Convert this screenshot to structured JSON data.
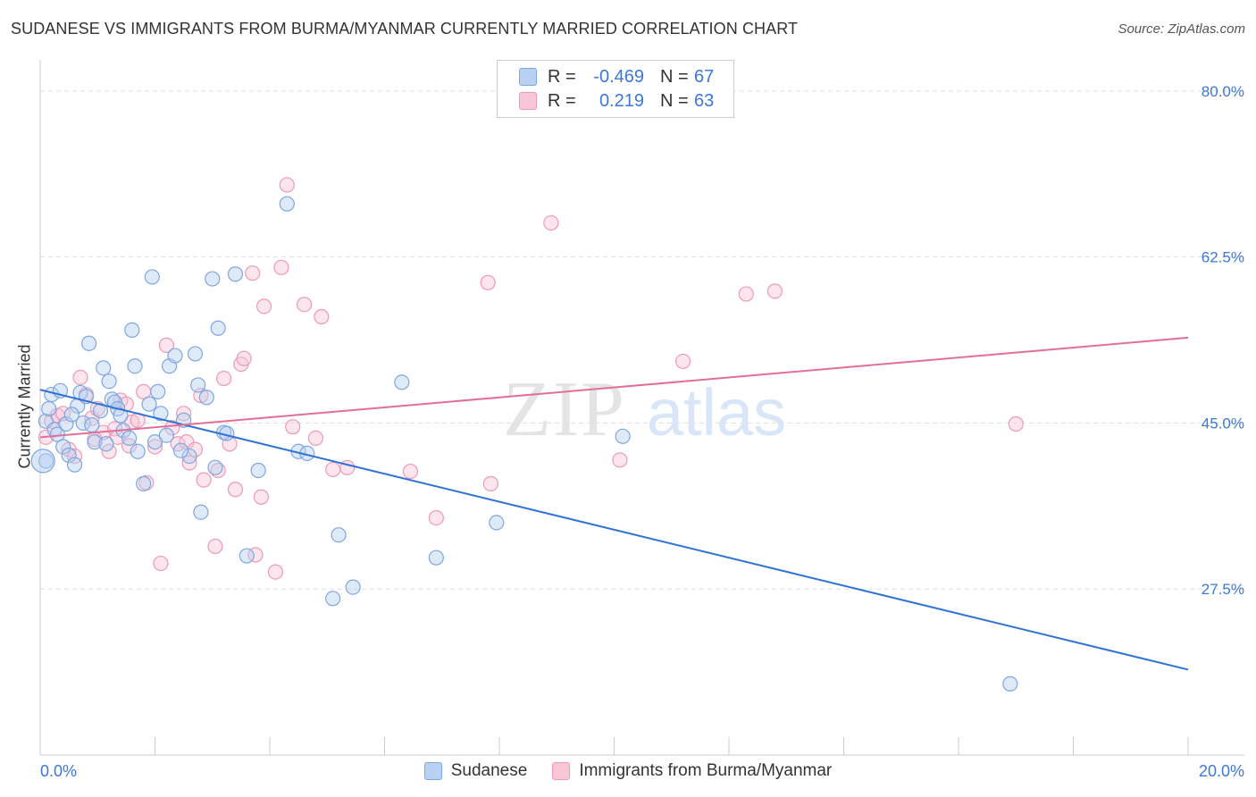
{
  "title": "SUDANESE VS IMMIGRANTS FROM BURMA/MYANMAR CURRENTLY MARRIED CORRELATION CHART",
  "source": "Source: ZipAtlas.com",
  "watermark": {
    "zip": "ZIP",
    "atlas": "atlas"
  },
  "legend": {
    "rows": [
      {
        "r_label": "R =",
        "r_value": "-0.469",
        "n_label": "N =",
        "n_value": "67"
      },
      {
        "r_label": "R =",
        "r_value": "0.219",
        "n_label": "N =",
        "n_value": "63"
      }
    ]
  },
  "bottom_legend": {
    "series1": "Sudanese",
    "series2": "Immigrants from Burma/Myanmar"
  },
  "colors": {
    "blue_fill": "#b8d0f2",
    "blue_stroke": "#7ea6e0",
    "blue_line": "#2f73d4",
    "pink_fill": "#f9c6d6",
    "pink_stroke": "#ec9ab5",
    "pink_line": "#e0709a",
    "axis_tick_text": "#3b78d8",
    "grid": "#dddddd"
  },
  "chart_data": {
    "type": "scatter",
    "xlabel": "",
    "ylabel": "Currently Married",
    "xlim": [
      0,
      20
    ],
    "ylim": [
      10,
      83
    ],
    "x_tick_labels": [
      "0.0%",
      "20.0%"
    ],
    "y_ticks": [
      27.5,
      45.0,
      62.5,
      80.0
    ],
    "y_tick_labels": [
      "27.5%",
      "45.0%",
      "62.5%",
      "80.0%"
    ],
    "grid": true,
    "legend_position": "top-center",
    "series": [
      {
        "name": "Sudanese",
        "color": "#7ea6e0",
        "trend": {
          "x": [
            0,
            20
          ],
          "y": [
            48.5,
            19.0
          ]
        },
        "points": [
          [
            0.1,
            41.0
          ],
          [
            0.1,
            45.2
          ],
          [
            0.15,
            46.5
          ],
          [
            0.2,
            48.0
          ],
          [
            0.25,
            44.3
          ],
          [
            0.3,
            43.8
          ],
          [
            0.35,
            48.4
          ],
          [
            0.4,
            42.5
          ],
          [
            0.5,
            41.6
          ],
          [
            0.6,
            40.6
          ],
          [
            0.65,
            46.8
          ],
          [
            0.7,
            48.2
          ],
          [
            0.75,
            45.0
          ],
          [
            0.8,
            47.8
          ],
          [
            0.85,
            53.4
          ],
          [
            0.9,
            44.8
          ],
          [
            0.95,
            43.0
          ],
          [
            1.1,
            50.8
          ],
          [
            1.2,
            49.4
          ],
          [
            1.25,
            47.5
          ],
          [
            1.3,
            47.2
          ],
          [
            1.35,
            46.5
          ],
          [
            1.4,
            45.8
          ],
          [
            1.45,
            44.2
          ],
          [
            1.6,
            54.8
          ],
          [
            1.65,
            51.0
          ],
          [
            1.7,
            42.0
          ],
          [
            1.8,
            38.6
          ],
          [
            1.9,
            47.0
          ],
          [
            1.95,
            60.4
          ],
          [
            2.0,
            43.0
          ],
          [
            2.05,
            48.3
          ],
          [
            2.1,
            46.0
          ],
          [
            2.2,
            43.7
          ],
          [
            2.25,
            51.0
          ],
          [
            2.35,
            52.1
          ],
          [
            2.5,
            45.3
          ],
          [
            2.6,
            41.5
          ],
          [
            2.7,
            52.3
          ],
          [
            2.75,
            49.0
          ],
          [
            2.8,
            35.6
          ],
          [
            2.9,
            47.7
          ],
          [
            3.0,
            60.2
          ],
          [
            3.1,
            55.0
          ],
          [
            3.2,
            44.0
          ],
          [
            3.4,
            60.7
          ],
          [
            3.6,
            31.0
          ],
          [
            3.8,
            40.0
          ],
          [
            4.3,
            68.1
          ],
          [
            4.5,
            42.0
          ],
          [
            4.65,
            41.8
          ],
          [
            5.1,
            26.5
          ],
          [
            5.2,
            33.2
          ],
          [
            5.45,
            27.7
          ],
          [
            6.3,
            49.3
          ],
          [
            6.9,
            30.8
          ],
          [
            7.95,
            34.5
          ],
          [
            10.15,
            43.6
          ],
          [
            16.9,
            17.5
          ],
          [
            0.45,
            44.9
          ],
          [
            0.55,
            45.9
          ],
          [
            1.05,
            46.3
          ],
          [
            1.55,
            43.4
          ],
          [
            2.45,
            42.1
          ],
          [
            3.05,
            40.3
          ],
          [
            3.25,
            43.9
          ],
          [
            1.15,
            42.8
          ]
        ]
      },
      {
        "name": "Immigrants from Burma/Myanmar",
        "color": "#ec9ab5",
        "trend": {
          "x": [
            0,
            20
          ],
          "y": [
            43.5,
            54.0
          ]
        },
        "points": [
          [
            0.1,
            43.5
          ],
          [
            0.2,
            45.2
          ],
          [
            0.3,
            45.8
          ],
          [
            0.5,
            42.2
          ],
          [
            0.6,
            41.5
          ],
          [
            0.7,
            49.8
          ],
          [
            0.8,
            48.0
          ],
          [
            0.9,
            45.5
          ],
          [
            1.0,
            46.5
          ],
          [
            1.1,
            44.0
          ],
          [
            1.2,
            42.0
          ],
          [
            1.3,
            44.4
          ],
          [
            1.35,
            43.5
          ],
          [
            1.4,
            47.4
          ],
          [
            1.5,
            47.0
          ],
          [
            1.6,
            45.1
          ],
          [
            1.7,
            45.3
          ],
          [
            1.8,
            48.3
          ],
          [
            1.85,
            38.7
          ],
          [
            2.0,
            42.5
          ],
          [
            2.1,
            30.2
          ],
          [
            2.2,
            53.2
          ],
          [
            2.3,
            44.5
          ],
          [
            2.4,
            42.8
          ],
          [
            2.5,
            46.0
          ],
          [
            2.55,
            43.0
          ],
          [
            2.6,
            40.8
          ],
          [
            2.7,
            42.2
          ],
          [
            2.8,
            47.9
          ],
          [
            2.85,
            39.0
          ],
          [
            3.05,
            32.0
          ],
          [
            3.1,
            40.0
          ],
          [
            3.2,
            49.7
          ],
          [
            3.3,
            42.8
          ],
          [
            3.4,
            38.0
          ],
          [
            3.5,
            51.2
          ],
          [
            3.55,
            51.8
          ],
          [
            3.7,
            60.8
          ],
          [
            3.75,
            31.1
          ],
          [
            3.85,
            37.2
          ],
          [
            3.9,
            57.3
          ],
          [
            4.1,
            29.3
          ],
          [
            4.2,
            61.4
          ],
          [
            4.3,
            70.1
          ],
          [
            4.4,
            44.6
          ],
          [
            4.6,
            57.5
          ],
          [
            4.8,
            43.4
          ],
          [
            4.9,
            56.2
          ],
          [
            5.1,
            40.1
          ],
          [
            5.35,
            40.3
          ],
          [
            6.45,
            39.9
          ],
          [
            6.9,
            35.0
          ],
          [
            7.8,
            59.8
          ],
          [
            7.85,
            38.6
          ],
          [
            8.9,
            66.1
          ],
          [
            10.1,
            41.1
          ],
          [
            11.2,
            51.5
          ],
          [
            12.3,
            58.6
          ],
          [
            12.8,
            58.9
          ],
          [
            17.0,
            44.9
          ],
          [
            0.4,
            46.0
          ],
          [
            0.95,
            43.3
          ],
          [
            1.55,
            42.6
          ]
        ]
      }
    ]
  }
}
